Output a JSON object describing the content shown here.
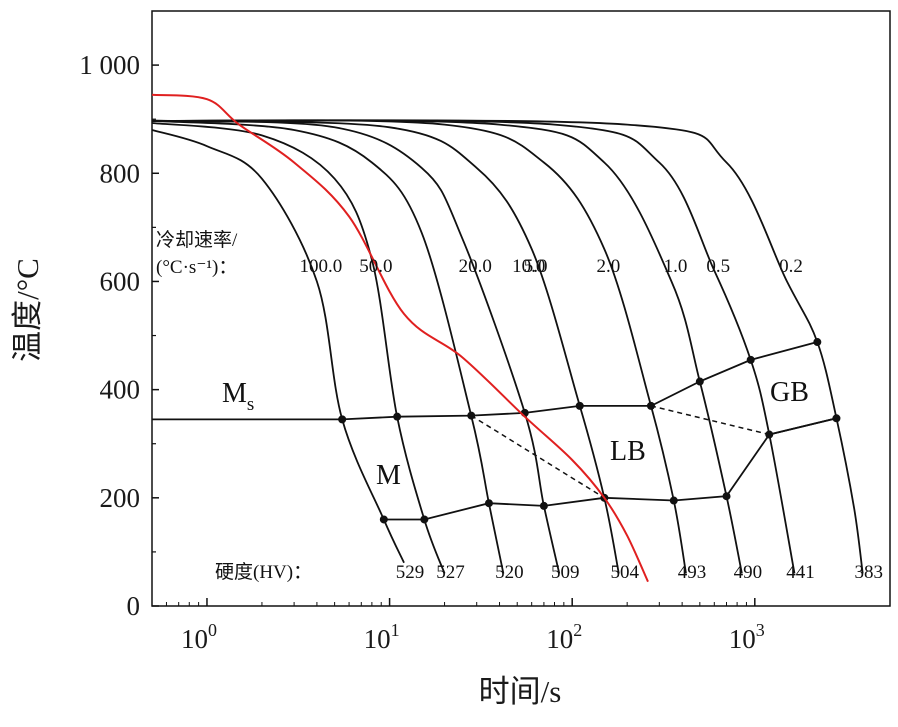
{
  "chart_data": {
    "type": "line",
    "title": "",
    "xlabel": "时间/s",
    "ylabel": "温度/°C",
    "x_scale": "log",
    "xlim": [
      0.5,
      5500
    ],
    "ylim": [
      0,
      1100
    ],
    "y_ticks": [
      {
        "value": 0,
        "label": "0"
      },
      {
        "value": 200,
        "label": "200"
      },
      {
        "value": 400,
        "label": "400"
      },
      {
        "value": 600,
        "label": "600"
      },
      {
        "value": 800,
        "label": "800"
      },
      {
        "value": 1000,
        "label": "1 000"
      }
    ],
    "x_ticks": [
      {
        "value": 1,
        "base": "10",
        "exp": "0"
      },
      {
        "value": 10,
        "base": "10",
        "exp": "1"
      },
      {
        "value": 100,
        "base": "10",
        "exp": "2"
      },
      {
        "value": 1000,
        "base": "10",
        "exp": "3"
      }
    ],
    "cooling_rate_title": "冷却速率/",
    "cooling_rate_unit": "(°C·s⁻¹)：",
    "hardness_title": "硬度(HV)：",
    "region_labels": {
      "ms_main": "M",
      "ms_sub": "s",
      "martensite": "M",
      "lower_bainite": "LB",
      "granular_bainite": "GB"
    },
    "cooling_curves": [
      {
        "rate": "100.0",
        "hardness": "529",
        "t_start": 0.5,
        "points": [
          [
            0.5,
            880
          ],
          [
            1,
            850
          ],
          [
            2,
            790
          ],
          [
            4,
            600
          ],
          [
            5.5,
            345
          ],
          [
            9.3,
            160
          ],
          [
            12,
            80
          ]
        ]
      },
      {
        "rate": "50.0",
        "hardness": "527",
        "t_start": 0.5,
        "points": [
          [
            0.5,
            893
          ],
          [
            2,
            870
          ],
          [
            5,
            790
          ],
          [
            8,
            640
          ],
          [
            11,
            350
          ],
          [
            15.5,
            160
          ],
          [
            20,
            60
          ]
        ]
      },
      {
        "rate": "20.0",
        "hardness": "520",
        "t_start": 0.5,
        "points": [
          [
            0.5,
            897
          ],
          [
            3,
            880
          ],
          [
            8,
            820
          ],
          [
            15,
            690
          ],
          [
            28,
            352
          ],
          [
            35,
            190
          ],
          [
            42,
            60
          ]
        ]
      },
      {
        "rate": "10.0",
        "hardness": "509",
        "t_start": 0.5,
        "points": [
          [
            0.5,
            897
          ],
          [
            5,
            885
          ],
          [
            15,
            810
          ],
          [
            25,
            680
          ],
          [
            55,
            357
          ],
          [
            70,
            185
          ],
          [
            85,
            60
          ]
        ]
      },
      {
        "rate": "5.0",
        "hardness": "504",
        "t_start": 0.5,
        "points": [
          [
            0.5,
            897
          ],
          [
            10,
            885
          ],
          [
            30,
            810
          ],
          [
            60,
            660
          ],
          [
            110,
            370
          ],
          [
            150,
            200
          ],
          [
            180,
            60
          ]
        ]
      },
      {
        "rate": "2.0",
        "hardness": "493",
        "t_start": 0.5,
        "points": [
          [
            0.5,
            897
          ],
          [
            20,
            890
          ],
          [
            70,
            820
          ],
          [
            150,
            660
          ],
          [
            270,
            370
          ],
          [
            360,
            195
          ],
          [
            420,
            60
          ]
        ]
      },
      {
        "rate": "1.0",
        "hardness": "490",
        "t_start": 0.5,
        "points": [
          [
            0.5,
            897
          ],
          [
            40,
            890
          ],
          [
            150,
            820
          ],
          [
            350,
            600
          ],
          [
            500,
            415
          ],
          [
            700,
            203
          ],
          [
            850,
            60
          ]
        ]
      },
      {
        "rate": "0.5",
        "hardness": "441",
        "t_start": 0.5,
        "points": [
          [
            0.5,
            897
          ],
          [
            80,
            890
          ],
          [
            300,
            820
          ],
          [
            600,
            620
          ],
          [
            950,
            455
          ],
          [
            1200,
            317
          ],
          [
            1650,
            60
          ]
        ]
      },
      {
        "rate": "0.2",
        "hardness": "383",
        "t_start": 0.5,
        "points": [
          [
            0.5,
            897
          ],
          [
            200,
            890
          ],
          [
            700,
            820
          ],
          [
            1500,
            600
          ],
          [
            2200,
            488
          ],
          [
            2800,
            347
          ],
          [
            3500,
            180
          ],
          [
            3900,
            60
          ]
        ]
      }
    ],
    "ms_line": [
      [
        0.5,
        345
      ],
      [
        5.5,
        345
      ],
      [
        11,
        350
      ],
      [
        28,
        352
      ],
      [
        55,
        357
      ],
      [
        110,
        370
      ],
      [
        270,
        370
      ],
      [
        500,
        415
      ],
      [
        950,
        455
      ],
      [
        2200,
        488
      ]
    ],
    "ms_lower_path": [
      [
        2800,
        347
      ],
      [
        1200,
        317
      ]
    ],
    "transformation_end_line": [
      [
        9.3,
        160
      ],
      [
        15.5,
        160
      ],
      [
        35,
        190
      ],
      [
        70,
        185
      ],
      [
        150,
        200
      ],
      [
        360,
        195
      ],
      [
        700,
        203
      ],
      [
        1200,
        317
      ],
      [
        2800,
        347
      ]
    ],
    "dashed_lines": [
      [
        [
          28,
          352
        ],
        [
          150,
          200
        ]
      ],
      [
        [
          270,
          370
        ],
        [
          1200,
          317
        ]
      ]
    ],
    "continuation_curve": {
      "name": "",
      "color": "#e02020",
      "points": [
        [
          0.5,
          945
        ],
        [
          1,
          937
        ],
        [
          1.5,
          890
        ],
        [
          3,
          820
        ],
        [
          6,
          720
        ],
        [
          12,
          540
        ],
        [
          25,
          460
        ],
        [
          55,
          350
        ],
        [
          100,
          270
        ],
        [
          150,
          200
        ],
        [
          200,
          130
        ],
        [
          260,
          45
        ]
      ]
    },
    "grid": false,
    "legend": "none"
  }
}
